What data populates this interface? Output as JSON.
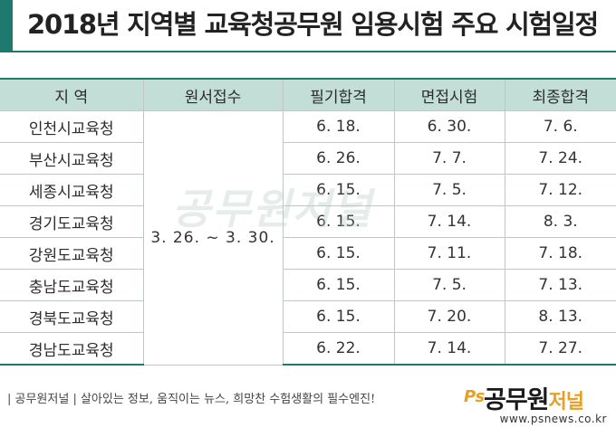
{
  "title": "2018년 지역별 교육청공무원 임용시험 주요 시험일정",
  "colors": {
    "accent": "#1e7a6e",
    "header_bg": "#c3ddd7",
    "logo_orange": "#e8a020"
  },
  "table": {
    "headers": [
      "지 역",
      "원서접수",
      "필기합격",
      "면접시험",
      "최종합격"
    ],
    "apply_period": "3. 26. ~ 3. 30.",
    "rows": [
      {
        "region": "인천시교육청",
        "written": "6. 18.",
        "interview": "6. 30.",
        "final": "7. 6."
      },
      {
        "region": "부산시교육청",
        "written": "6. 26.",
        "interview": "7. 7.",
        "final": "7. 24."
      },
      {
        "region": "세종시교육청",
        "written": "6. 15.",
        "interview": "7. 5.",
        "final": "7. 12."
      },
      {
        "region": "경기도교육청",
        "written": "6. 15.",
        "interview": "7. 14.",
        "final": "8. 3."
      },
      {
        "region": "강원도교육청",
        "written": "6. 15.",
        "interview": "7. 11.",
        "final": "7. 18."
      },
      {
        "region": "충남도교육청",
        "written": "6. 15.",
        "interview": "7. 5.",
        "final": "7. 13."
      },
      {
        "region": "경북도교육청",
        "written": "6. 15.",
        "interview": "7. 20.",
        "final": "8. 13."
      },
      {
        "region": "경남도교육청",
        "written": "6. 22.",
        "interview": "7. 14.",
        "final": "7. 27."
      }
    ]
  },
  "watermark": "공무원저널",
  "footer": {
    "tagline": "| 공무원저널 | 살아있는 정보, 움직이는 뉴스, 희망찬 수험생활의 필수엔진!",
    "logo_ps": "Ps",
    "logo_name": "공무원",
    "logo_accent": "저널",
    "url": "www.psnews.co.kr"
  }
}
